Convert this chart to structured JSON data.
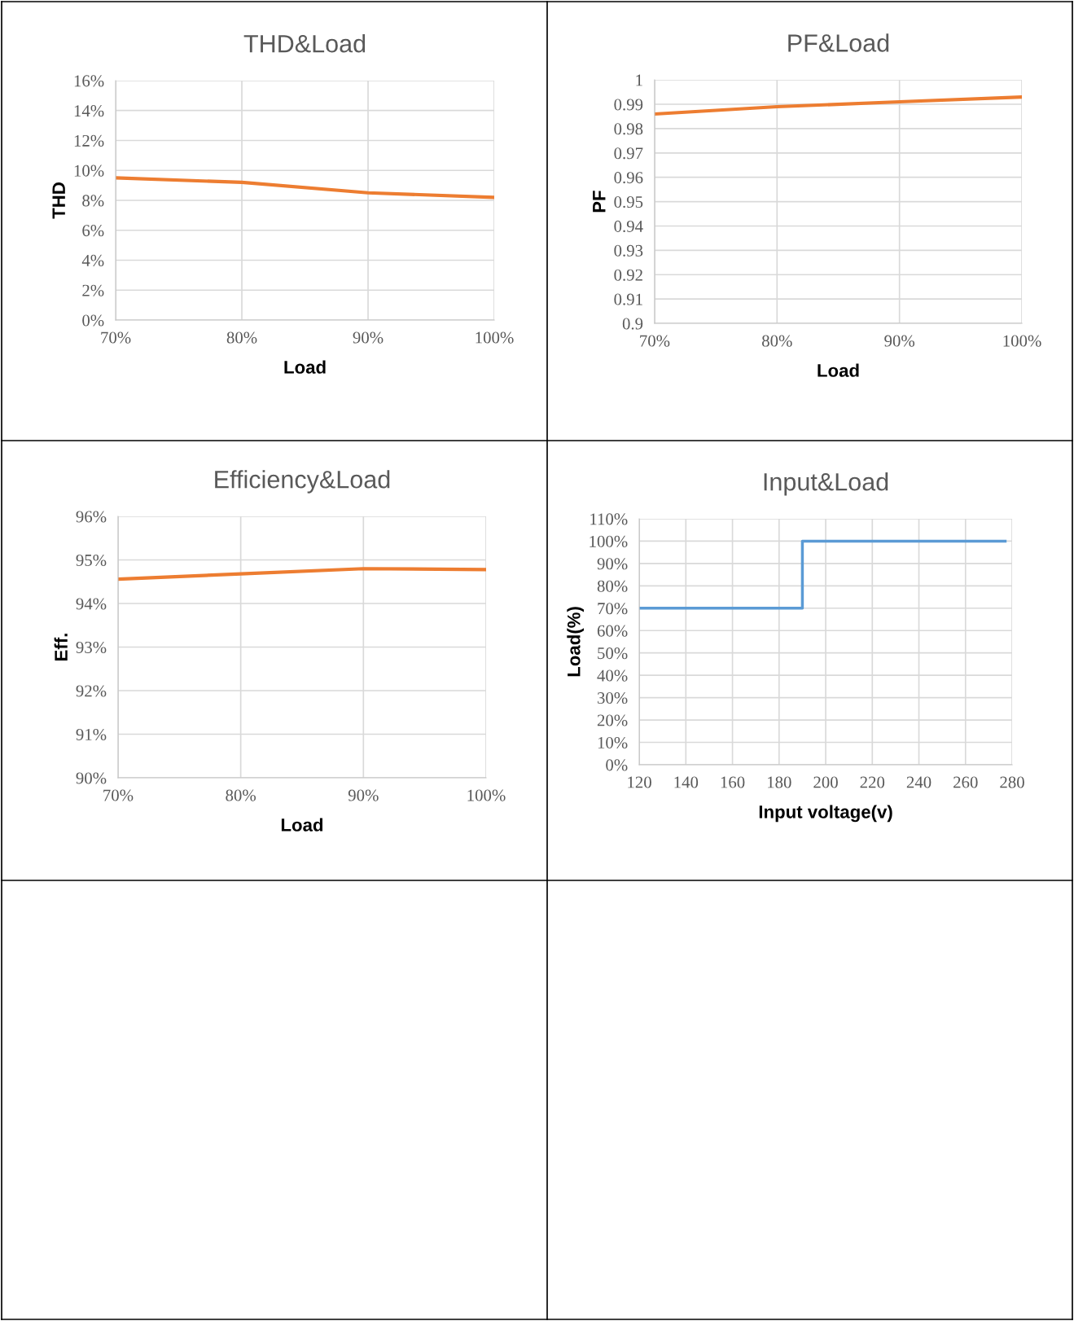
{
  "chart_data": [
    {
      "type": "line",
      "title": "THD&Load",
      "xlabel": "Load",
      "ylabel": "THD",
      "x": [
        70,
        80,
        90,
        100
      ],
      "series": [
        {
          "color": "#ed7d31",
          "values": [
            9.5,
            9.2,
            8.5,
            8.2
          ]
        }
      ],
      "xlim": [
        70,
        100
      ],
      "xticks": [
        {
          "value": 70,
          "label": "70%"
        },
        {
          "value": 80,
          "label": "80%"
        },
        {
          "value": 90,
          "label": "90%"
        },
        {
          "value": 100,
          "label": "100%"
        }
      ],
      "ylim": [
        0,
        16
      ],
      "yticks": [
        {
          "value": 0,
          "label": "0%"
        },
        {
          "value": 2,
          "label": "2%"
        },
        {
          "value": 4,
          "label": "4%"
        },
        {
          "value": 6,
          "label": "6%"
        },
        {
          "value": 8,
          "label": "8%"
        },
        {
          "value": 10,
          "label": "10%"
        },
        {
          "value": 12,
          "label": "12%"
        },
        {
          "value": 14,
          "label": "14%"
        },
        {
          "value": 16,
          "label": "16%"
        }
      ],
      "grid": true
    },
    {
      "type": "line",
      "title": "PF&Load",
      "xlabel": "Load",
      "ylabel": "PF",
      "x": [
        70,
        80,
        90,
        100
      ],
      "series": [
        {
          "color": "#ed7d31",
          "values": [
            0.986,
            0.989,
            0.991,
            0.993
          ]
        }
      ],
      "xlim": [
        70,
        100
      ],
      "xticks": [
        {
          "value": 70,
          "label": "70%"
        },
        {
          "value": 80,
          "label": "80%"
        },
        {
          "value": 90,
          "label": "90%"
        },
        {
          "value": 100,
          "label": "100%"
        }
      ],
      "ylim": [
        0.9,
        1
      ],
      "yticks": [
        0.9,
        0.91,
        0.92,
        0.93,
        0.94,
        0.95,
        0.96,
        0.97,
        0.98,
        0.99,
        1
      ],
      "grid": true
    },
    {
      "type": "line",
      "title": "Efficiency&Load",
      "xlabel": "Load",
      "ylabel": "Eff.",
      "x": [
        70,
        80,
        90,
        100
      ],
      "series": [
        {
          "color": "#ed7d31",
          "values": [
            94.56,
            94.68,
            94.8,
            94.78
          ]
        }
      ],
      "xlim": [
        70,
        100
      ],
      "xticks": [
        {
          "value": 70,
          "label": "70%"
        },
        {
          "value": 80,
          "label": "80%"
        },
        {
          "value": 90,
          "label": "90%"
        },
        {
          "value": 100,
          "label": "100%"
        }
      ],
      "ylim": [
        90,
        96
      ],
      "yticks": [
        {
          "value": 90,
          "label": "90%"
        },
        {
          "value": 91,
          "label": "91%"
        },
        {
          "value": 92,
          "label": "92%"
        },
        {
          "value": 93,
          "label": "93%"
        },
        {
          "value": 94,
          "label": "94%"
        },
        {
          "value": 95,
          "label": "95%"
        },
        {
          "value": 96,
          "label": "96%"
        }
      ],
      "grid": true
    },
    {
      "type": "step",
      "title": "Input&Load",
      "xlabel": "Input voltage(v)",
      "ylabel": "Load(%)",
      "x": [
        120,
        190,
        277
      ],
      "series": [
        {
          "color": "#5b9bd5",
          "values": [
            70,
            100,
            100
          ]
        }
      ],
      "xlim": [
        120,
        280
      ],
      "xticks": [
        120,
        140,
        160,
        180,
        200,
        220,
        240,
        260,
        280
      ],
      "ylim": [
        0,
        110
      ],
      "yticks": [
        {
          "value": 0,
          "label": "0%"
        },
        {
          "value": 10,
          "label": "10%"
        },
        {
          "value": 20,
          "label": "20%"
        },
        {
          "value": 30,
          "label": "30%"
        },
        {
          "value": 40,
          "label": "40%"
        },
        {
          "value": 50,
          "label": "50%"
        },
        {
          "value": 60,
          "label": "60%"
        },
        {
          "value": 70,
          "label": "70%"
        },
        {
          "value": 80,
          "label": "80%"
        },
        {
          "value": 90,
          "label": "90%"
        },
        {
          "value": 100,
          "label": "100%"
        },
        {
          "value": 110,
          "label": "110%"
        }
      ],
      "grid": true
    }
  ]
}
